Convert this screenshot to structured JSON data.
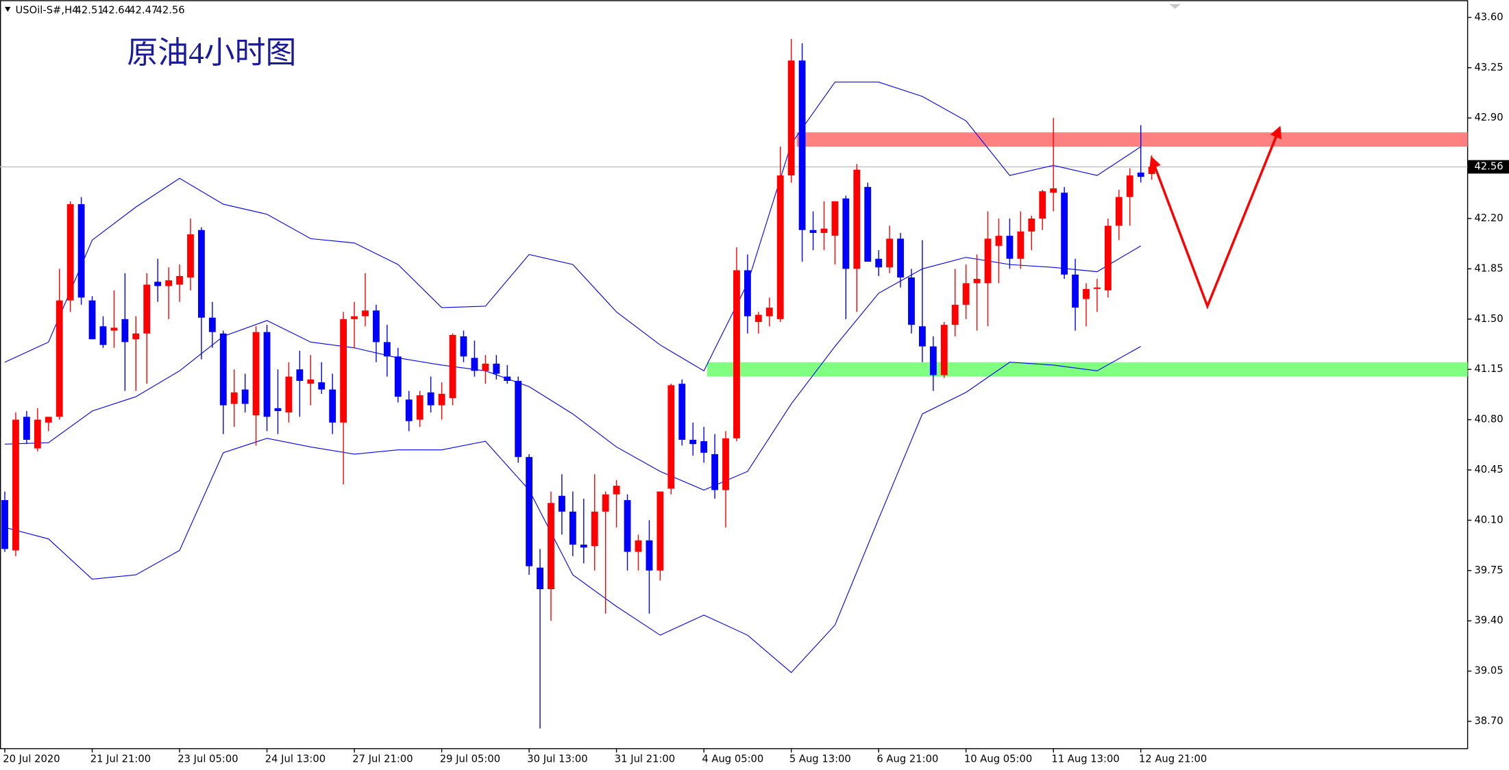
{
  "chart_data": {
    "type": "candlestick",
    "symbol": "USOil-S#,H4",
    "title": "原油4小时图",
    "up_color": "#ff0000",
    "down_color": "#0000ff",
    "ylim": [
      38.51,
      43.72
    ],
    "yticks": [
      {
        "value": 43.6,
        "label": "43.60"
      },
      43.25,
      {
        "value": 42.9,
        "label": "42.90"
      },
      {
        "value": 42.2,
        "label": "42.20"
      },
      41.85,
      {
        "value": 41.5,
        "label": "41.50"
      },
      41.15,
      {
        "value": 40.8,
        "label": "40.80"
      },
      40.45,
      {
        "value": 40.1,
        "label": "40.10"
      },
      39.75,
      {
        "value": 39.4,
        "label": "39.40"
      },
      39.05,
      {
        "value": 38.7,
        "label": "38.70"
      }
    ],
    "categories": [
      "20 Jul 2020",
      null,
      null,
      null,
      null,
      null,
      null,
      null,
      "21 Jul 21:00",
      null,
      null,
      null,
      null,
      null,
      null,
      null,
      "23 Jul 05:00",
      null,
      null,
      null,
      null,
      null,
      null,
      null,
      "24 Jul 13:00",
      null,
      null,
      null,
      null,
      null,
      null,
      null,
      "27 Jul 21:00",
      null,
      null,
      null,
      null,
      null,
      null,
      null,
      "29 Jul 05:00",
      null,
      null,
      null,
      null,
      null,
      null,
      null,
      "30 Jul 13:00",
      null,
      null,
      null,
      null,
      null,
      null,
      null,
      "31 Jul 21:00",
      null,
      null,
      null,
      null,
      null,
      null,
      null,
      "4 Aug 05:00",
      null,
      null,
      null,
      null,
      null,
      null,
      null,
      "5 Aug 13:00",
      null,
      null,
      null,
      null,
      null,
      null,
      null,
      "6 Aug 21:00",
      null,
      null,
      null,
      null,
      null,
      null,
      null,
      "10 Aug 05:00",
      null,
      null,
      null,
      null,
      null,
      null,
      null,
      "11 Aug 13:00",
      null,
      null,
      null,
      null,
      null,
      null,
      null,
      "12 Aug 21:00",
      null
    ],
    "open": [
      40.24,
      39.89,
      40.82,
      40.6,
      40.78,
      40.82,
      41.63,
      42.3,
      41.63,
      41.45,
      41.42,
      41.5,
      41.36,
      41.4,
      41.76,
      41.73,
      41.74,
      41.79,
      42.12,
      41.51,
      41.4,
      40.91,
      41.01,
      40.83,
      41.41,
      40.88,
      40.85,
      41.15,
      41.05,
      41.06,
      41.01,
      40.78,
      41.5,
      41.52,
      41.56,
      41.34,
      41.24,
      40.94,
      40.8,
      40.99,
      40.9,
      40.95,
      41.38,
      41.23,
      41.14,
      41.19,
      41.1,
      41.07,
      40.54,
      39.77,
      39.62,
      40.27,
      40.16,
      39.93,
      39.92,
      40.16,
      40.28,
      40.24,
      39.88,
      39.96,
      39.75,
      40.32,
      41.05,
      40.66,
      40.65,
      40.56,
      40.31,
      40.67,
      41.84,
      41.48,
      41.52,
      41.5,
      42.5,
      43.3,
      42.12,
      42.1,
      42.08,
      42.34,
      41.85,
      42.42,
      41.92,
      41.86,
      42.06,
      41.79,
      41.45,
      41.31,
      41.11,
      41.46,
      41.6,
      41.75,
      41.75,
      42.01,
      42.08,
      41.92,
      42.11,
      42.2,
      42.38,
      42.38,
      41.81,
      41.64,
      41.71,
      41.7,
      42.15,
      42.35,
      42.52,
      42.51
    ],
    "high": [
      40.3,
      40.85,
      40.86,
      40.88,
      40.82,
      41.85,
      42.32,
      42.35,
      41.66,
      41.52,
      41.7,
      41.82,
      41.52,
      41.82,
      41.92,
      41.86,
      41.88,
      42.2,
      42.14,
      41.62,
      41.42,
      41.15,
      41.12,
      41.45,
      41.46,
      41.15,
      41.2,
      41.28,
      41.25,
      41.2,
      41.12,
      41.55,
      41.62,
      41.82,
      41.6,
      41.46,
      41.3,
      41.0,
      41.0,
      41.1,
      41.06,
      41.4,
      41.42,
      41.35,
      41.25,
      41.25,
      41.18,
      41.1,
      40.56,
      39.9,
      40.3,
      40.42,
      40.3,
      40.25,
      40.42,
      40.3,
      40.38,
      40.28,
      40.0,
      40.1,
      40.3,
      41.05,
      41.08,
      40.78,
      40.75,
      40.7,
      40.72,
      42.0,
      41.95,
      41.55,
      41.65,
      42.7,
      43.45,
      43.42,
      42.25,
      42.32,
      42.32,
      42.36,
      42.58,
      42.45,
      41.98,
      42.15,
      42.1,
      41.85,
      42.05,
      41.38,
      41.48,
      41.85,
      41.88,
      41.95,
      42.25,
      42.2,
      42.2,
      42.25,
      42.22,
      42.4,
      42.9,
      42.42,
      41.92,
      41.75,
      41.78,
      42.2,
      42.4,
      42.55,
      42.85,
      42.64
    ],
    "low": [
      39.88,
      39.85,
      40.63,
      40.58,
      40.72,
      40.8,
      41.55,
      41.6,
      41.36,
      41.3,
      41.3,
      41.0,
      41.0,
      41.05,
      41.62,
      41.5,
      41.62,
      41.7,
      41.22,
      41.3,
      40.7,
      40.75,
      40.85,
      40.62,
      40.72,
      40.7,
      40.78,
      40.82,
      40.9,
      40.98,
      40.7,
      40.35,
      41.3,
      41.45,
      41.2,
      41.1,
      40.92,
      40.72,
      40.75,
      40.85,
      40.8,
      40.9,
      41.2,
      41.1,
      41.05,
      41.08,
      41.05,
      40.5,
      39.72,
      38.65,
      39.4,
      40.0,
      39.85,
      39.8,
      39.75,
      39.45,
      40.05,
      39.75,
      39.75,
      39.45,
      39.68,
      40.28,
      40.62,
      40.55,
      40.5,
      40.25,
      40.05,
      40.65,
      41.4,
      41.4,
      41.45,
      41.48,
      42.45,
      41.9,
      41.98,
      41.98,
      41.88,
      41.5,
      41.55,
      41.9,
      41.8,
      41.82,
      41.72,
      41.4,
      41.2,
      41.0,
      41.09,
      41.38,
      41.5,
      41.42,
      41.45,
      41.75,
      41.85,
      41.85,
      41.98,
      42.12,
      42.25,
      41.78,
      41.42,
      41.45,
      41.55,
      41.65,
      42.05,
      42.15,
      42.45,
      42.47
    ],
    "close": [
      39.9,
      40.8,
      40.66,
      40.8,
      40.82,
      41.63,
      42.3,
      41.65,
      41.36,
      41.32,
      41.44,
      41.34,
      41.4,
      41.74,
      41.73,
      41.77,
      41.8,
      42.09,
      41.51,
      41.41,
      40.9,
      40.99,
      40.91,
      41.41,
      40.82,
      40.86,
      41.1,
      41.07,
      41.08,
      41.01,
      40.78,
      41.5,
      41.52,
      41.56,
      41.34,
      41.24,
      40.96,
      40.79,
      40.97,
      40.9,
      40.98,
      41.39,
      41.24,
      41.14,
      41.19,
      41.12,
      41.07,
      40.54,
      39.78,
      39.62,
      40.22,
      40.16,
      39.93,
      39.91,
      40.16,
      40.28,
      40.34,
      39.88,
      39.96,
      39.75,
      40.3,
      41.04,
      40.66,
      40.63,
      40.57,
      40.31,
      40.67,
      41.84,
      41.52,
      41.53,
      41.58,
      42.5,
      43.3,
      42.12,
      42.1,
      42.13,
      42.32,
      41.85,
      42.54,
      41.9,
      41.86,
      42.06,
      41.79,
      41.46,
      41.31,
      41.11,
      41.46,
      41.6,
      41.75,
      41.78,
      42.06,
      42.08,
      41.92,
      42.11,
      42.2,
      42.39,
      42.41,
      41.81,
      41.58,
      41.71,
      41.72,
      42.15,
      42.35,
      42.5,
      42.49,
      42.56
    ],
    "bands": {
      "color": "#0000ff",
      "x": [
        0,
        4,
        8,
        12,
        16,
        20,
        24,
        28,
        32,
        36,
        40,
        44,
        48,
        52,
        56,
        60,
        64,
        68,
        72,
        76,
        80,
        84,
        88,
        92,
        96,
        100,
        104
      ],
      "upper": [
        41.2,
        41.34,
        42.05,
        42.28,
        42.48,
        42.3,
        42.23,
        42.06,
        42.03,
        41.88,
        41.58,
        41.59,
        41.95,
        41.88,
        41.55,
        41.32,
        41.14,
        41.75,
        42.72,
        43.15,
        43.15,
        43.05,
        42.88,
        42.5,
        42.57,
        42.5,
        42.7
      ],
      "middle": [
        40.63,
        40.64,
        40.86,
        40.96,
        41.14,
        41.38,
        41.49,
        41.34,
        41.3,
        41.23,
        41.18,
        41.14,
        41.03,
        40.84,
        40.61,
        40.44,
        40.31,
        40.44,
        40.91,
        41.31,
        41.68,
        41.85,
        41.93,
        41.88,
        41.86,
        41.83,
        42.01
      ],
      "lower": [
        40.05,
        39.97,
        39.69,
        39.72,
        39.89,
        40.57,
        40.67,
        40.61,
        40.56,
        40.59,
        40.59,
        40.65,
        40.31,
        39.72,
        39.5,
        39.3,
        39.44,
        39.3,
        39.04,
        39.37,
        40.11,
        40.84,
        40.99,
        41.2,
        41.18,
        41.14,
        41.31
      ]
    },
    "zones": [
      {
        "from": 42.7,
        "to": 42.8,
        "start": 72.5,
        "color": "#ff8080"
      },
      {
        "from": 41.1,
        "to": 41.2,
        "start": 64.3,
        "color": "#80ff80"
      }
    ],
    "arrow": {
      "color": "#ff0000",
      "x": [
        105,
        110.1,
        116.7
      ],
      "y": [
        42.62,
        41.59,
        42.83
      ]
    },
    "price_line_color": "#c0c0c0"
  }
}
